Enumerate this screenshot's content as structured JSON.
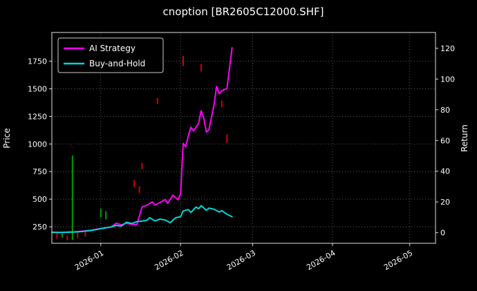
{
  "chart_data": {
    "type": "line",
    "title": "cnoption [BR2605C12000.SHF]",
    "ylabel_left": "Price",
    "ylabel_right": "Return",
    "background": "#000000",
    "grid": true,
    "legend_position": "upper left",
    "x_start": "2025-12-13",
    "x_end": "2026-05-11",
    "x_ticks": [
      {
        "date": "2026-01-01",
        "label": "2026-01"
      },
      {
        "date": "2026-02-01",
        "label": "2026-02"
      },
      {
        "date": "2026-03-01",
        "label": "2026-03"
      },
      {
        "date": "2026-04-01",
        "label": "2026-04"
      },
      {
        "date": "2026-05-01",
        "label": "2026-05"
      }
    ],
    "left_axis": {
      "ticks": [
        250,
        500,
        750,
        1000,
        1250,
        1500,
        1750
      ],
      "lim": [
        100,
        2010
      ]
    },
    "right_axis": {
      "ticks": [
        0,
        20,
        40,
        60,
        80,
        100,
        120
      ],
      "lim": [
        -6.9,
        130.3
      ]
    },
    "colors": {
      "ai": "#ff00ff",
      "buy_and_hold": "#00d8d8",
      "candle_up": "#00a000",
      "candle_down": "#d40000",
      "grid": "#8a8a8a",
      "spine": "#e0e0e0",
      "text": "#ffffff"
    },
    "series": [
      {
        "name": "AI Strategy",
        "color": "#ff00ff",
        "points": [
          [
            "2025-12-13",
            200
          ],
          [
            "2025-12-16",
            199
          ],
          [
            "2025-12-19",
            202
          ],
          [
            "2025-12-22",
            204
          ],
          [
            "2025-12-25",
            210
          ],
          [
            "2025-12-28",
            218
          ],
          [
            "2025-12-31",
            230
          ],
          [
            "2026-01-02",
            236
          ],
          [
            "2026-01-05",
            248
          ],
          [
            "2026-01-07",
            282
          ],
          [
            "2026-01-09",
            268
          ],
          [
            "2026-01-11",
            281
          ],
          [
            "2026-01-13",
            273
          ],
          [
            "2026-01-15",
            268
          ],
          [
            "2026-01-17",
            428
          ],
          [
            "2026-01-19",
            446
          ],
          [
            "2026-01-21",
            476
          ],
          [
            "2026-01-22",
            447
          ],
          [
            "2026-01-24",
            469
          ],
          [
            "2026-01-26",
            497
          ],
          [
            "2026-01-27",
            463
          ],
          [
            "2026-01-29",
            536
          ],
          [
            "2026-01-31",
            494
          ],
          [
            "2026-02-01",
            548
          ],
          [
            "2026-02-02",
            1005
          ],
          [
            "2026-02-03",
            974
          ],
          [
            "2026-02-04",
            1072
          ],
          [
            "2026-02-05",
            1152
          ],
          [
            "2026-02-06",
            1118
          ],
          [
            "2026-02-08",
            1188
          ],
          [
            "2026-02-09",
            1302
          ],
          [
            "2026-02-10",
            1232
          ],
          [
            "2026-02-11",
            1108
          ],
          [
            "2026-02-12",
            1128
          ],
          [
            "2026-02-14",
            1358
          ],
          [
            "2026-02-15",
            1522
          ],
          [
            "2026-02-16",
            1456
          ],
          [
            "2026-02-17",
            1483
          ],
          [
            "2026-02-19",
            1503
          ],
          [
            "2026-02-21",
            1872
          ]
        ]
      },
      {
        "name": "Buy-and-Hold",
        "color": "#00d8d8",
        "points": [
          [
            "2025-12-13",
            200
          ],
          [
            "2025-12-16",
            198
          ],
          [
            "2025-12-19",
            200
          ],
          [
            "2025-12-22",
            203
          ],
          [
            "2025-12-25",
            207
          ],
          [
            "2025-12-28",
            215
          ],
          [
            "2025-12-31",
            228
          ],
          [
            "2026-01-02",
            238
          ],
          [
            "2026-01-05",
            247
          ],
          [
            "2026-01-07",
            263
          ],
          [
            "2026-01-09",
            256
          ],
          [
            "2026-01-11",
            291
          ],
          [
            "2026-01-13",
            279
          ],
          [
            "2026-01-15",
            296
          ],
          [
            "2026-01-17",
            301
          ],
          [
            "2026-01-19",
            309
          ],
          [
            "2026-01-20",
            333
          ],
          [
            "2026-01-22",
            303
          ],
          [
            "2026-01-24",
            319
          ],
          [
            "2026-01-26",
            311
          ],
          [
            "2026-01-28",
            287
          ],
          [
            "2026-01-30",
            331
          ],
          [
            "2026-02-01",
            341
          ],
          [
            "2026-02-02",
            393
          ],
          [
            "2026-02-04",
            406
          ],
          [
            "2026-02-05",
            379
          ],
          [
            "2026-02-07",
            429
          ],
          [
            "2026-02-08",
            413
          ],
          [
            "2026-02-09",
            441
          ],
          [
            "2026-02-11",
            399
          ],
          [
            "2026-02-12",
            419
          ],
          [
            "2026-02-14",
            409
          ],
          [
            "2026-02-16",
            383
          ],
          [
            "2026-02-17",
            396
          ],
          [
            "2026-02-19",
            363
          ],
          [
            "2026-02-20",
            353
          ],
          [
            "2026-02-21",
            341
          ]
        ]
      }
    ],
    "candlesticks": [
      {
        "date": "2025-12-15",
        "low": 142,
        "high": 196,
        "direction": "down"
      },
      {
        "date": "2025-12-17",
        "low": 152,
        "high": 188,
        "direction": "up"
      },
      {
        "date": "2025-12-19",
        "low": 127,
        "high": 172,
        "direction": "down"
      },
      {
        "date": "2025-12-21",
        "low": 130,
        "high": 895,
        "direction": "up"
      },
      {
        "date": "2025-12-23",
        "low": 147,
        "high": 206,
        "direction": "down"
      },
      {
        "date": "2025-12-26",
        "low": 160,
        "high": 202,
        "direction": "down"
      },
      {
        "date": "2026-01-01",
        "low": 338,
        "high": 416,
        "direction": "up"
      },
      {
        "date": "2026-01-03",
        "low": 318,
        "high": 392,
        "direction": "up"
      },
      {
        "date": "2026-01-14",
        "low": 607,
        "high": 672,
        "direction": "down"
      },
      {
        "date": "2026-01-16",
        "low": 556,
        "high": 616,
        "direction": "down"
      },
      {
        "date": "2026-01-17",
        "low": 772,
        "high": 828,
        "direction": "down"
      },
      {
        "date": "2026-01-23",
        "low": 1362,
        "high": 1416,
        "direction": "down"
      },
      {
        "date": "2026-02-02",
        "low": 1706,
        "high": 1797,
        "direction": "down"
      },
      {
        "date": "2026-02-09",
        "low": 1657,
        "high": 1724,
        "direction": "down"
      },
      {
        "date": "2026-02-17",
        "low": 1332,
        "high": 1394,
        "direction": "down"
      },
      {
        "date": "2026-02-19",
        "low": 1012,
        "high": 1088,
        "direction": "down"
      }
    ]
  }
}
